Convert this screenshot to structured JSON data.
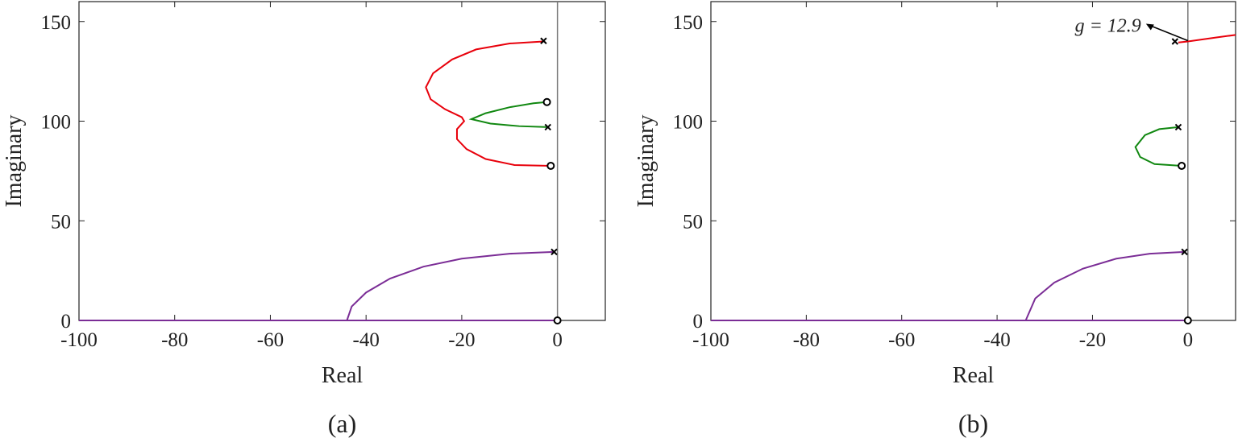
{
  "chart_data": [
    {
      "type": "line",
      "caption": "(a)",
      "xlabel": "Real",
      "ylabel": "Imaginary",
      "xlim": [
        -100,
        10
      ],
      "ylim": [
        0,
        160
      ],
      "xticks": [
        -100,
        -80,
        -60,
        -40,
        -20,
        0
      ],
      "yticks": [
        0,
        50,
        100,
        150
      ],
      "series": [
        {
          "color": "#e8000b",
          "x": [
            -2.9,
            -10,
            -17,
            -22,
            -26,
            -27.5,
            -26.5,
            -23.5,
            -20,
            -19.5,
            -21,
            -21,
            -19,
            -15,
            -9,
            -1.4
          ],
          "values": [
            140,
            139,
            136,
            131,
            124,
            117,
            111,
            106,
            102,
            100,
            96,
            91,
            86,
            81,
            78,
            77.6
          ]
        },
        {
          "color": "#118811",
          "x": [
            -2,
            -8,
            -14,
            -18,
            -15,
            -10,
            -5,
            -2.2
          ],
          "values": [
            97,
            97.5,
            98.8,
            101,
            104,
            107,
            109,
            109.6
          ]
        },
        {
          "color": "#7b2d96",
          "x": [
            -0.7,
            -10,
            -20,
            -28,
            -35,
            -40,
            -43,
            -44
          ],
          "values": [
            34.4,
            33.5,
            31,
            27,
            21,
            14,
            7,
            0
          ]
        },
        {
          "color": "#7b2d96",
          "x": [
            -100,
            0
          ],
          "values": [
            0,
            0
          ]
        }
      ],
      "poles": {
        "x": [
          -2.9,
          -2,
          -0.7
        ],
        "y": [
          140.3,
          97,
          34.4
        ]
      },
      "zeros": {
        "x": [
          -2.2,
          -1.4,
          0
        ],
        "y": [
          109.6,
          77.6,
          0
        ]
      }
    },
    {
      "type": "line",
      "caption": "(b)",
      "xlabel": "Real",
      "ylabel": "Imaginary",
      "xlim": [
        -100,
        10
      ],
      "ylim": [
        0,
        160
      ],
      "xticks": [
        -100,
        -80,
        -60,
        -40,
        -20,
        0
      ],
      "yticks": [
        0,
        50,
        100,
        150
      ],
      "series": [
        {
          "color": "#e8000b",
          "x": [
            -2,
            0,
            3,
            6,
            10
          ],
          "values": [
            139.5,
            140,
            141,
            142,
            143.3
          ]
        },
        {
          "color": "#118811",
          "x": [
            -2,
            -6,
            -9,
            -11,
            -10,
            -7,
            -1.3
          ],
          "values": [
            97,
            96,
            93,
            87,
            82,
            78.5,
            77.6
          ]
        },
        {
          "color": "#7b2d96",
          "x": [
            -0.7,
            -8,
            -15,
            -22,
            -28,
            -32,
            -34
          ],
          "values": [
            34.4,
            33.5,
            31,
            26,
            19,
            11,
            0
          ]
        },
        {
          "color": "#7b2d96",
          "x": [
            -100,
            0
          ],
          "values": [
            0,
            0
          ]
        }
      ],
      "poles": {
        "x": [
          -2.7,
          -2,
          -0.7
        ],
        "y": [
          140,
          97,
          34.4
        ]
      },
      "zeros": {
        "x": [
          -1.3,
          0
        ],
        "y": [
          77.6,
          0
        ]
      },
      "annotation": {
        "text": "g = 12.9",
        "x": 0,
        "y": 140
      }
    }
  ]
}
